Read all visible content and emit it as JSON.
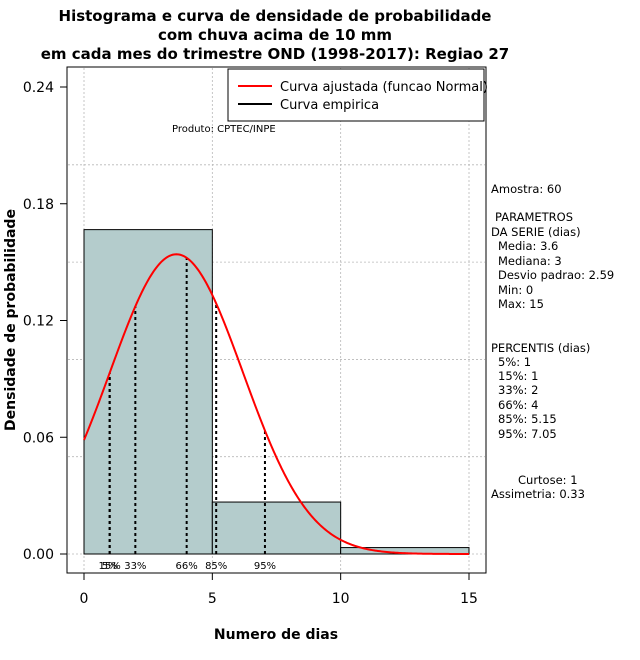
{
  "chart_data": {
    "type": "histogram",
    "title_lines": [
      "Histograma e curva de densidade de probabilidade",
      "com chuva acima de 10 mm",
      "em cada mes do trimestre OND (1998-2017): Regiao 27"
    ],
    "xlabel": "Numero de dias",
    "ylabel": "Densidade de probabilidade",
    "xlim": [
      0,
      15
    ],
    "ylim": [
      0,
      0.24
    ],
    "x_ticks": [
      0,
      5,
      10,
      15
    ],
    "y_ticks": [
      0.0,
      0.06,
      0.12,
      0.18,
      0.24
    ],
    "y_tick_labels": [
      "0.00",
      "0.06",
      "0.12",
      "0.18",
      "0.24"
    ],
    "grid": true,
    "bins": [
      {
        "from": 0,
        "to": 5,
        "density": 0.1667
      },
      {
        "from": 5,
        "to": 10,
        "density": 0.0267
      },
      {
        "from": 10,
        "to": 15,
        "density": 0.0033
      }
    ],
    "normal_curve": {
      "mean": 3.6,
      "sd": 2.59,
      "color": "#ff0000"
    },
    "percentile_lines": [
      {
        "label": "5%",
        "x": 1
      },
      {
        "label": "15%",
        "x": 1
      },
      {
        "label": "33%",
        "x": 2
      },
      {
        "label": "66%",
        "x": 4
      },
      {
        "label": "85%",
        "x": 5.15
      },
      {
        "label": "95%",
        "x": 7.05
      }
    ],
    "legend": {
      "position": "top-right",
      "entries": [
        {
          "label": "Curva ajustada (funcao Normal)",
          "color": "#ff0000"
        },
        {
          "label": "Curva empirica",
          "color": "#000000"
        }
      ]
    },
    "annotation": "Produto: CPTEC/INPE",
    "bar_color": "#b4cccc"
  },
  "stats": {
    "amostra": "Amostra: 60",
    "params_title_1": "PARAMETROS",
    "params_title_2": "DA SERIE (dias)",
    "media": "Media: 3.6",
    "mediana": "Mediana: 3",
    "desvio": "Desvio padrao: 2.59",
    "min": "Min: 0",
    "max": "Max: 15",
    "percentis_title": "PERCENTIS (dias)",
    "p5": "5%: 1",
    "p15": "15%: 1",
    "p33": "33%: 2",
    "p66": "66%: 4",
    "p85": "85%: 5.15",
    "p95": "95%: 7.05",
    "curtose": "Curtose: 1",
    "assimetria": "Assimetria: 0.33"
  }
}
